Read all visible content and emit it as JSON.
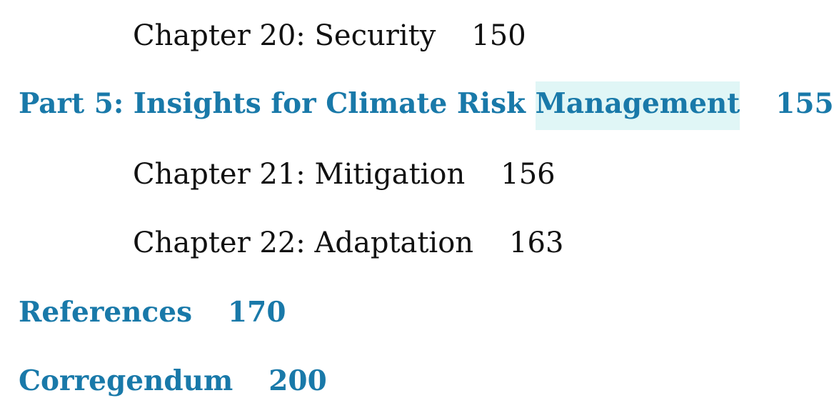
{
  "toc": {
    "entries": [
      {
        "title": "Chapter 20: Security",
        "page": "150",
        "level": "chapter"
      },
      {
        "title": "Part 5: Insights for Climate Risk",
        "title_highlighted": "Management",
        "page": "155",
        "level": "part"
      },
      {
        "title": "Chapter 21: Mitigation",
        "page": "156",
        "level": "chapter"
      },
      {
        "title": "Chapter 22: Adaptation",
        "page": "163",
        "level": "chapter"
      },
      {
        "title": "References",
        "page": "170",
        "level": "part"
      },
      {
        "title": "Corregendum",
        "page": "200",
        "level": "part"
      }
    ]
  },
  "colors": {
    "part_heading": "#1979a9",
    "chapter_text": "#111111",
    "highlight": "#e0f6f6"
  }
}
